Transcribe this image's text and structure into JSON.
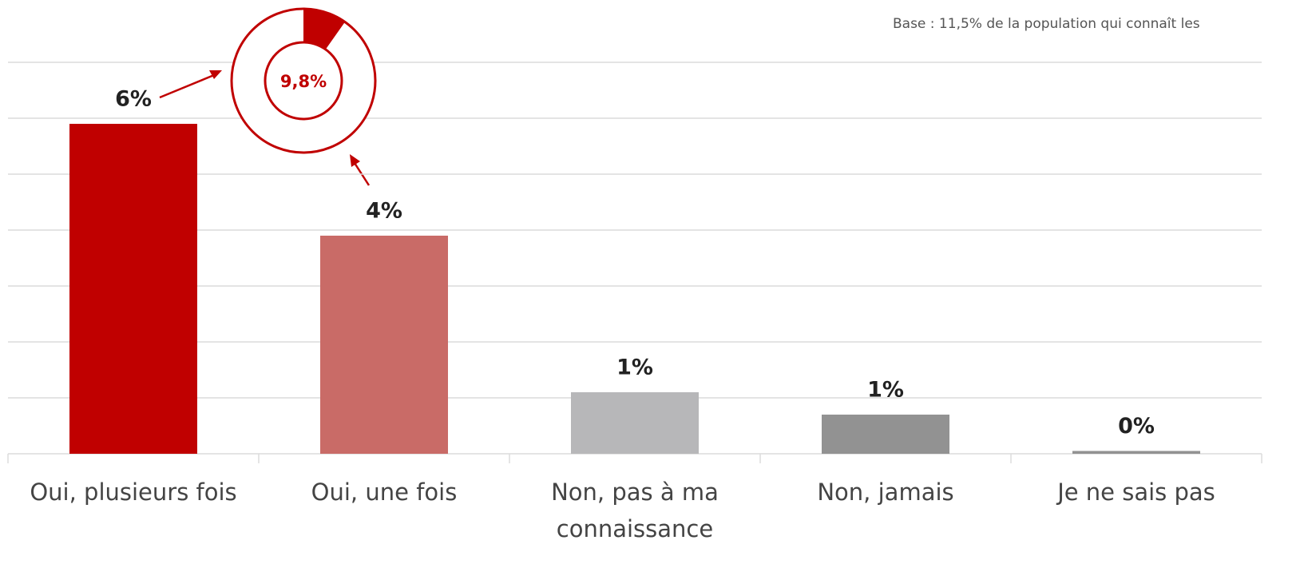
{
  "chart_data": {
    "type": "bar",
    "note": "Base : 11,5% de la population qui connaît les",
    "categories": [
      "Oui, plusieurs fois",
      "Oui, une fois",
      "Non, pas à ma connaissance",
      "Non, jamais",
      "Je ne sais pas"
    ],
    "values": [
      5.9,
      3.9,
      1.1,
      0.7,
      0.05
    ],
    "value_labels": [
      "6%",
      "4%",
      "1%",
      "1%",
      "0%"
    ],
    "colors": [
      "#c00000",
      "#c96b67",
      "#b7b7b9",
      "#929292",
      "#929292"
    ],
    "ylim": [
      0,
      7
    ],
    "yticks": [
      0,
      1,
      2,
      3,
      4,
      5,
      6,
      7
    ],
    "grid": true,
    "donut": {
      "value": 9.8,
      "value_label": "9,8%",
      "color": "#c00000"
    }
  }
}
